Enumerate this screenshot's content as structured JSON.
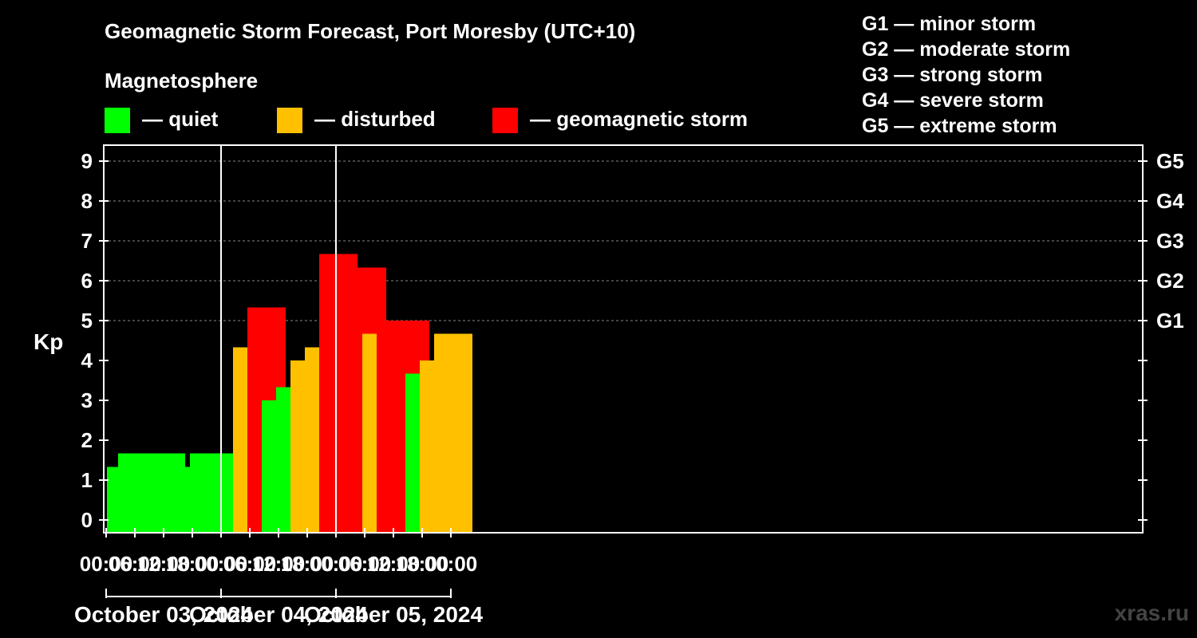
{
  "title": "Geomagnetic Storm Forecast, Port Moresby (UTC+10)",
  "legend": {
    "heading": "Magnetosphere",
    "items": [
      {
        "label": "— quiet",
        "color": "#00ff00"
      },
      {
        "label": "— disturbed",
        "color": "#ffc000"
      },
      {
        "label": "— geomagnetic storm",
        "color": "#ff0000"
      }
    ]
  },
  "storm_levels": [
    "G1 — minor storm",
    "G2 — moderate storm",
    "G3 — strong storm",
    "G4 — severe storm",
    "G5 — extreme storm"
  ],
  "watermark": "xras.ru",
  "chart_data": {
    "type": "bar",
    "ylabel": "Kp",
    "ylim": [
      0,
      9
    ],
    "y_ticks": [
      "0",
      "1",
      "2",
      "3",
      "4",
      "5",
      "6",
      "7",
      "8",
      "9"
    ],
    "right_ticks": [
      {
        "kp": 5,
        "label": "G1"
      },
      {
        "kp": 6,
        "label": "G2"
      },
      {
        "kp": 7,
        "label": "G3"
      },
      {
        "kp": 8,
        "label": "G4"
      },
      {
        "kp": 9,
        "label": "G5"
      }
    ],
    "grid": "dashed horizontal at 5,6,7,8,9",
    "x_tick_labels": [
      "00:00",
      "06:00",
      "12:00",
      "18:00",
      "00:00",
      "06:00",
      "12:00",
      "18:00",
      "00:00",
      "06:00",
      "12:00",
      "18:00",
      "00:00"
    ],
    "dates": [
      "October 03, 2024",
      "October 04, 2024",
      "October 05, 2024"
    ],
    "bars": [
      {
        "time": "2024-10-03 00:00",
        "kp": 1.33,
        "level": "quiet"
      },
      {
        "time": "2024-10-03 03:00",
        "kp": 1.33,
        "level": "quiet"
      },
      {
        "time": "2024-10-03 06:00",
        "kp": 1.67,
        "level": "quiet"
      },
      {
        "time": "2024-10-03 09:00",
        "kp": 1.67,
        "level": "quiet"
      },
      {
        "time": "2024-10-03 12:00",
        "kp": 1.67,
        "level": "quiet"
      },
      {
        "time": "2024-10-03 15:00",
        "kp": 1.33,
        "level": "quiet"
      },
      {
        "time": "2024-10-03 18:00",
        "kp": 1.33,
        "level": "quiet"
      },
      {
        "time": "2024-10-03 21:00",
        "kp": 1.67,
        "level": "quiet"
      },
      {
        "time": "2024-10-04 00:00",
        "kp": 1.67,
        "level": "quiet"
      },
      {
        "time": "2024-10-04 03:00",
        "kp": 1.33,
        "level": "quiet"
      },
      {
        "time": "2024-10-04 06:00",
        "kp": 4.33,
        "level": "disturbed"
      },
      {
        "time": "2024-10-04 09:00",
        "kp": 5.33,
        "level": "storm"
      },
      {
        "time": "2024-10-04 12:00",
        "kp": 3.0,
        "level": "quiet"
      },
      {
        "time": "2024-10-04 15:00",
        "kp": 3.33,
        "level": "quiet"
      },
      {
        "time": "2024-10-04 18:00",
        "kp": 4.0,
        "level": "disturbed"
      },
      {
        "time": "2024-10-04 21:00",
        "kp": 4.33,
        "level": "disturbed"
      },
      {
        "time": "2024-10-05 00:00",
        "kp": 6.67,
        "level": "storm"
      },
      {
        "time": "2024-10-05 03:00",
        "kp": 6.33,
        "level": "storm"
      },
      {
        "time": "2024-10-05 06:00",
        "kp": 6.33,
        "level": "storm"
      },
      {
        "time": "2024-10-05 09:00",
        "kp": 4.67,
        "level": "disturbed"
      },
      {
        "time": "2024-10-05 12:00",
        "kp": 5.0,
        "level": "storm"
      },
      {
        "time": "2024-10-05 15:00",
        "kp": 5.0,
        "level": "storm"
      },
      {
        "time": "2024-10-05 18:00",
        "kp": 3.67,
        "level": "quiet"
      },
      {
        "time": "2024-10-05 21:00",
        "kp": 4.0,
        "level": "disturbed"
      },
      {
        "time": "2024-10-06 00:00",
        "kp": 4.67,
        "level": "disturbed"
      }
    ],
    "colors": {
      "quiet": "#00ff00",
      "disturbed": "#ffc000",
      "storm": "#ff0000"
    }
  }
}
